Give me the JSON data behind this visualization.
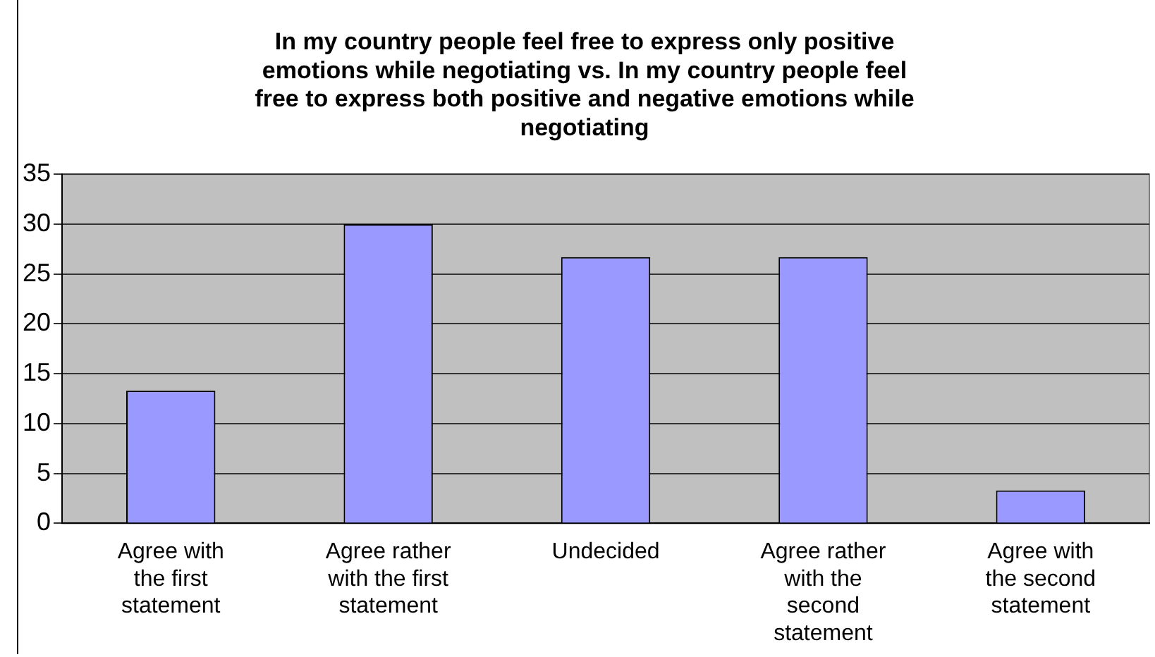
{
  "chart_data": {
    "type": "bar",
    "title": "In my country people feel free to express only positive emotions while negotiating vs. In my country people feel free to express both positive and negative emotions while negotiating",
    "categories": [
      "Agree with the first statement",
      "Agree rather with the first statement",
      "Undecided",
      "Agree rather with the second statement",
      "Agree with the second statement"
    ],
    "values": [
      13.3,
      30,
      26.7,
      26.7,
      3.3
    ],
    "color": "#9999ff",
    "ylim": [
      0,
      35
    ],
    "yticks": [
      0,
      5,
      10,
      15,
      20,
      25,
      30,
      35
    ],
    "grid": "y",
    "legend": false
  }
}
